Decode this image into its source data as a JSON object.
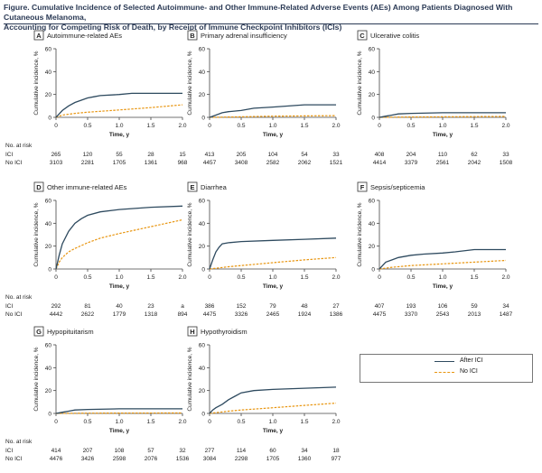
{
  "figure": {
    "title_line1": "Figure. Cumulative Incidence of Selected Autoimmune- and Other Immune-Related Adverse Events (AEs) Among Patients Diagnosed With Cutaneous Melanoma,",
    "title_line2": "Accounting for Competing Risk of Death, by Receipt of Immune Checkpoint Inhibitors (ICIs)"
  },
  "colors": {
    "after_ici": "#2e4a5f",
    "no_ici": "#e8950f",
    "axis": "#444444"
  },
  "legend": {
    "after_ici": "After ICI",
    "no_ici": "No ICI"
  },
  "common": {
    "ylabel": "Cumulative incidence, %",
    "xlabel": "Time, y",
    "risk_title": "No. at risk",
    "risk_ici": "ICI",
    "risk_noici": "No ICI"
  },
  "chart_data": [
    {
      "type": "line",
      "letter": "A",
      "title": "Autoimmune-related AEs",
      "x_ticks": [
        "0",
        "0.5",
        "1.0",
        "1.5",
        "2.0"
      ],
      "y_ticks": [
        "0",
        "20",
        "40",
        "60"
      ],
      "xlim": [
        0,
        2
      ],
      "ylim": [
        0,
        60
      ],
      "series": [
        {
          "name": "After ICI",
          "x": [
            0,
            0.05,
            0.1,
            0.2,
            0.3,
            0.4,
            0.5,
            0.6,
            0.7,
            1.0,
            1.2,
            1.5,
            2.0
          ],
          "y": [
            0,
            3,
            6,
            10,
            13,
            15,
            17,
            18,
            19,
            20,
            21,
            21,
            21
          ]
        },
        {
          "name": "No ICI",
          "x": [
            0,
            0.1,
            0.3,
            0.5,
            1.0,
            1.5,
            2.0
          ],
          "y": [
            0,
            2,
            3.5,
            4.5,
            6.5,
            8.5,
            11
          ]
        }
      ],
      "risk": {
        "times": [
          "0",
          "0.5",
          "1.0",
          "1.5",
          "2.0"
        ],
        "ici": [
          "265",
          "120",
          "55",
          "28",
          "15"
        ],
        "noici": [
          "3103",
          "2281",
          "1705",
          "1361",
          "968"
        ]
      }
    },
    {
      "type": "line",
      "letter": "B",
      "title": "Primary adrenal insufficiency",
      "x_ticks": [
        "0",
        "0.5",
        "1.0",
        "1.5",
        "2.0"
      ],
      "y_ticks": [
        "0",
        "20",
        "40",
        "60"
      ],
      "xlim": [
        0,
        2
      ],
      "ylim": [
        0,
        60
      ],
      "series": [
        {
          "name": "After ICI",
          "x": [
            0,
            0.1,
            0.2,
            0.3,
            0.5,
            0.7,
            1.0,
            1.5,
            2.0
          ],
          "y": [
            0,
            2,
            4,
            5,
            6,
            8,
            9,
            11,
            11
          ]
        },
        {
          "name": "No ICI",
          "x": [
            0,
            0.5,
            1.0,
            2.0
          ],
          "y": [
            0,
            0.5,
            1,
            1.5
          ]
        }
      ],
      "risk": {
        "times": [
          "0",
          "0.5",
          "1.0",
          "1.5",
          "2.0"
        ],
        "ici": [
          "413",
          "205",
          "104",
          "54",
          "33"
        ],
        "noici": [
          "4457",
          "3408",
          "2582",
          "2062",
          "1521"
        ]
      }
    },
    {
      "type": "line",
      "letter": "C",
      "title": "Ulcerative colitis",
      "x_ticks": [
        "0",
        "0.5",
        "1.0",
        "1.5",
        "2.0"
      ],
      "y_ticks": [
        "0",
        "20",
        "40",
        "60"
      ],
      "xlim": [
        0,
        2
      ],
      "ylim": [
        0,
        60
      ],
      "series": [
        {
          "name": "After ICI",
          "x": [
            0,
            0.1,
            0.2,
            0.3,
            0.5,
            1.0,
            2.0
          ],
          "y": [
            0,
            1,
            2,
            3,
            3.5,
            4,
            4
          ]
        },
        {
          "name": "No ICI",
          "x": [
            0,
            0.5,
            1.0,
            2.0
          ],
          "y": [
            0,
            0.3,
            0.5,
            0.8
          ]
        }
      ],
      "risk": {
        "times": [
          "0",
          "0.5",
          "1.0",
          "1.5",
          "2.0"
        ],
        "ici": [
          "408",
          "204",
          "110",
          "62",
          "33"
        ],
        "noici": [
          "4414",
          "3379",
          "2561",
          "2042",
          "1508"
        ]
      }
    },
    {
      "type": "line",
      "letter": "D",
      "title": "Other immune-related AEs",
      "x_ticks": [
        "0",
        "0.5",
        "1.0",
        "1.5",
        "2.0"
      ],
      "y_ticks": [
        "0",
        "20",
        "40",
        "60"
      ],
      "xlim": [
        0,
        2
      ],
      "ylim": [
        0,
        60
      ],
      "series": [
        {
          "name": "After ICI",
          "x": [
            0,
            0.05,
            0.1,
            0.2,
            0.3,
            0.4,
            0.5,
            0.7,
            1.0,
            1.5,
            2.0
          ],
          "y": [
            0,
            12,
            22,
            33,
            40,
            44,
            47,
            50,
            52,
            54,
            55
          ]
        },
        {
          "name": "No ICI",
          "x": [
            0,
            0.05,
            0.1,
            0.2,
            0.3,
            0.5,
            0.7,
            1.0,
            1.5,
            2.0
          ],
          "y": [
            0,
            6,
            10,
            15,
            18,
            23,
            27,
            31,
            37,
            43
          ]
        }
      ],
      "risk": {
        "times": [
          "0",
          "0.5",
          "1.0",
          "1.5",
          "2.0"
        ],
        "ici": [
          "292",
          "81",
          "40",
          "23",
          "a"
        ],
        "noici": [
          "4442",
          "2622",
          "1779",
          "1318",
          "894"
        ]
      }
    },
    {
      "type": "line",
      "letter": "E",
      "title": "Diarrhea",
      "x_ticks": [
        "0",
        "0.5",
        "1.0",
        "1.5",
        "2.0"
      ],
      "y_ticks": [
        "0",
        "20",
        "40",
        "60"
      ],
      "xlim": [
        0,
        2
      ],
      "ylim": [
        0,
        60
      ],
      "series": [
        {
          "name": "After ICI",
          "x": [
            0,
            0.05,
            0.1,
            0.15,
            0.2,
            0.3,
            0.5,
            1.0,
            1.5,
            2.0
          ],
          "y": [
            0,
            8,
            15,
            19,
            22,
            23,
            24,
            25,
            26,
            27
          ]
        },
        {
          "name": "No ICI",
          "x": [
            0,
            0.3,
            0.5,
            1.0,
            1.5,
            2.0
          ],
          "y": [
            0,
            2,
            3,
            5.5,
            8,
            10
          ]
        }
      ],
      "risk": {
        "times": [
          "0",
          "0.5",
          "1.0",
          "1.5",
          "2.0"
        ],
        "ici": [
          "386",
          "152",
          "79",
          "48",
          "27"
        ],
        "noici": [
          "4475",
          "3326",
          "2465",
          "1924",
          "1386"
        ]
      }
    },
    {
      "type": "line",
      "letter": "F",
      "title": "Sepsis/septicemia",
      "x_ticks": [
        "0",
        "0.5",
        "1.0",
        "1.5",
        "2.0"
      ],
      "y_ticks": [
        "0",
        "20",
        "40",
        "60"
      ],
      "xlim": [
        0,
        2
      ],
      "ylim": [
        0,
        60
      ],
      "series": [
        {
          "name": "After ICI",
          "x": [
            0,
            0.05,
            0.1,
            0.2,
            0.3,
            0.5,
            0.7,
            1.0,
            1.2,
            1.5,
            2.0
          ],
          "y": [
            0,
            3,
            6,
            8,
            10,
            12,
            13,
            14,
            15,
            17,
            17
          ]
        },
        {
          "name": "No ICI",
          "x": [
            0,
            0.2,
            0.5,
            1.0,
            1.5,
            2.0
          ],
          "y": [
            0,
            1.5,
            3,
            4.5,
            6,
            7.5
          ]
        }
      ],
      "risk": {
        "times": [
          "0",
          "0.5",
          "1.0",
          "1.5",
          "2.0"
        ],
        "ici": [
          "407",
          "193",
          "106",
          "59",
          "34"
        ],
        "noici": [
          "4475",
          "3370",
          "2543",
          "2013",
          "1487"
        ]
      }
    },
    {
      "type": "line",
      "letter": "G",
      "title": "Hypopituitarism",
      "x_ticks": [
        "0",
        "0.5",
        "1.0",
        "1.5",
        "2.0"
      ],
      "y_ticks": [
        "0",
        "20",
        "40",
        "60"
      ],
      "xlim": [
        0,
        2
      ],
      "ylim": [
        0,
        60
      ],
      "series": [
        {
          "name": "After ICI",
          "x": [
            0,
            0.1,
            0.2,
            0.3,
            0.5,
            1.0,
            2.0
          ],
          "y": [
            0,
            1,
            2,
            3,
            3.5,
            4,
            4
          ]
        },
        {
          "name": "No ICI",
          "x": [
            0,
            0.5,
            1.0,
            2.0
          ],
          "y": [
            0,
            0.2,
            0.3,
            0.4
          ]
        }
      ],
      "risk": {
        "times": [
          "0",
          "0.5",
          "1.0",
          "1.5",
          "2.0"
        ],
        "ici": [
          "414",
          "207",
          "108",
          "57",
          "32"
        ],
        "noici": [
          "4476",
          "3426",
          "2598",
          "2076",
          "1536"
        ]
      }
    },
    {
      "type": "line",
      "letter": "H",
      "title": "Hypothyroidism",
      "x_ticks": [
        "0",
        "0.5",
        "1.0",
        "1.5",
        "2.0"
      ],
      "y_ticks": [
        "0",
        "20",
        "40",
        "60"
      ],
      "xlim": [
        0,
        2
      ],
      "ylim": [
        0,
        60
      ],
      "series": [
        {
          "name": "After ICI",
          "x": [
            0,
            0.05,
            0.1,
            0.2,
            0.3,
            0.4,
            0.5,
            0.7,
            1.0,
            1.5,
            2.0
          ],
          "y": [
            0,
            3,
            5,
            8,
            12,
            15,
            18,
            20,
            21,
            22,
            23
          ]
        },
        {
          "name": "No ICI",
          "x": [
            0,
            0.3,
            0.5,
            1.0,
            1.5,
            2.0
          ],
          "y": [
            0,
            2,
            3,
            5,
            7,
            9
          ]
        }
      ],
      "risk": {
        "times": [
          "0",
          "0.5",
          "1.0",
          "1.5",
          "2.0"
        ],
        "ici": [
          "277",
          "114",
          "60",
          "34",
          "18"
        ],
        "noici": [
          "3084",
          "2298",
          "1705",
          "1360",
          "977"
        ]
      }
    }
  ]
}
